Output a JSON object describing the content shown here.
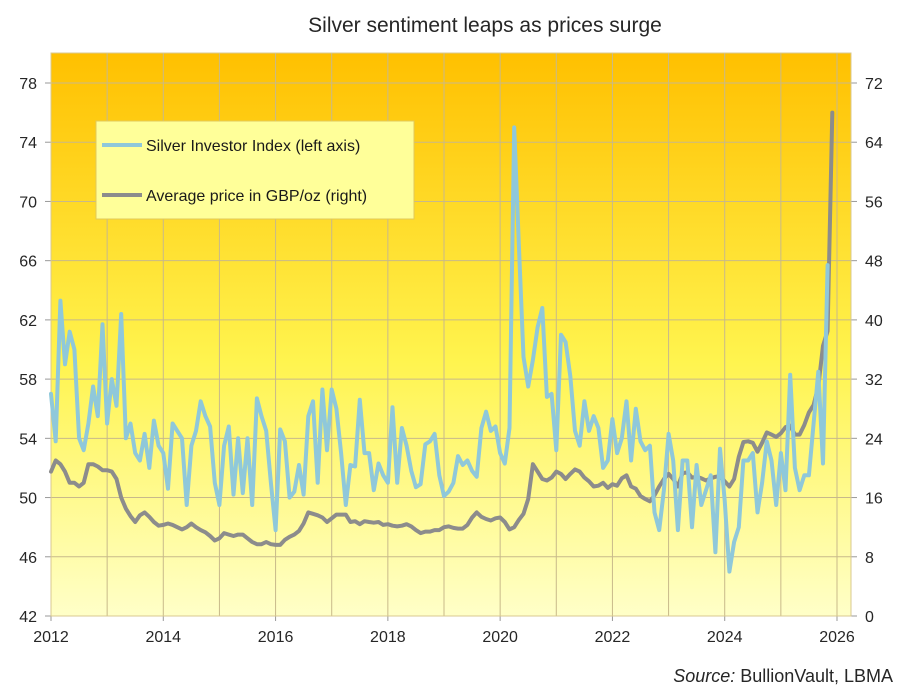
{
  "chart_data": {
    "type": "line",
    "title": "Silver sentiment leaps as prices surge",
    "source_label": "Source:",
    "source_text": "BullionVault,  LBMA",
    "xlabel": "",
    "ylabel_left": "",
    "ylabel_right": "",
    "x_start": 2012.0,
    "x_step_months": 1,
    "xlim": [
      2012,
      2026.5
    ],
    "ylim_left": [
      42,
      80
    ],
    "ylim_right": [
      0,
      76
    ],
    "x_ticks": [
      "2012",
      "2014",
      "2016",
      "2018",
      "2020",
      "2022",
      "2024",
      "2026"
    ],
    "x_tick_values": [
      2012,
      2014,
      2016,
      2018,
      2020,
      2022,
      2024,
      2026
    ],
    "x_grid_values": [
      2012,
      2013,
      2014,
      2015,
      2016,
      2017,
      2018,
      2019,
      2020,
      2021,
      2022,
      2023,
      2024,
      2025,
      2026
    ],
    "y_ticks_left": [
      "42",
      "46",
      "50",
      "54",
      "58",
      "62",
      "66",
      "70",
      "74",
      "78"
    ],
    "y_tick_values_left": [
      42,
      46,
      50,
      54,
      58,
      62,
      66,
      70,
      74,
      78
    ],
    "y_ticks_right": [
      "0",
      "8",
      "16",
      "24",
      "32",
      "40",
      "48",
      "56",
      "64",
      "72"
    ],
    "y_tick_values_right": [
      0,
      8,
      16,
      24,
      32,
      40,
      48,
      56,
      64,
      72
    ],
    "grid": true,
    "legend_position": "top-left",
    "background_gradient": {
      "top": "#FFC000",
      "middle": "#FFF44F",
      "bottom": "#FFFFC8"
    },
    "series": [
      {
        "name": "Silver Investor Index (left axis)",
        "axis": "left",
        "color": "#8FC8DA",
        "values": [
          57,
          53.8,
          63.3,
          59,
          61.2,
          60,
          54,
          53.2,
          55,
          57.5,
          55.5,
          61.7,
          55,
          58,
          56.2,
          62.4,
          54,
          55,
          53,
          52.5,
          54.3,
          52,
          55.2,
          53.5,
          53,
          50.6,
          55,
          54.5,
          54,
          49.5,
          53.5,
          54.5,
          56.5,
          55.5,
          54.8,
          51,
          49.5,
          53.5,
          54.8,
          50.2,
          54,
          50.3,
          54,
          49.5,
          56.7,
          55.5,
          54.5,
          51,
          47.8,
          54.6,
          53.8,
          50,
          50.4,
          52.2,
          50.2,
          55.5,
          56.5,
          51,
          57.3,
          53.2,
          57.3,
          56,
          53,
          49.5,
          52.2,
          52.1,
          56.6,
          53,
          53,
          50.5,
          52.3,
          51.5,
          51,
          56.1,
          51,
          54.7,
          53.5,
          51.8,
          50.7,
          50.9,
          53.6,
          53.8,
          54.3,
          51.5,
          50.1,
          50.4,
          51,
          52.8,
          52.2,
          52.5,
          51.8,
          51.4,
          54.7,
          55.8,
          54.5,
          54.8,
          53,
          52.3,
          54.7,
          75,
          67,
          59.5,
          57.5,
          59.3,
          61.5,
          62.8,
          56.8,
          57,
          53.2,
          61,
          60.5,
          58.2,
          54.5,
          53.5,
          56.5,
          54.5,
          55.5,
          54.7,
          52,
          52.5,
          55.3,
          53,
          54,
          56.5,
          52.5,
          56,
          53.8,
          53.2,
          53.5,
          49,
          47.8,
          50.5,
          54.3,
          52.5,
          47.8,
          52.5,
          52.5,
          48,
          52.2,
          49.5,
          50.5,
          51.5,
          46.3,
          53.3,
          49.8,
          45,
          47,
          48,
          52.5,
          52.5,
          53,
          49,
          51,
          53.8,
          52.5,
          49.5,
          53,
          50.5,
          58.3,
          52,
          50.5,
          51.5,
          51.5,
          55,
          58.5,
          52.3,
          65.7
        ]
      },
      {
        "name": "Average price in GBP/oz (right)",
        "axis": "right",
        "color": "#8C8C8C",
        "values": [
          19.5,
          21,
          20.5,
          19.5,
          18,
          18,
          17.5,
          18,
          20.5,
          20.5,
          20.2,
          19.7,
          19.7,
          19.5,
          18.5,
          16,
          14.5,
          13.5,
          12.7,
          13.6,
          14,
          13.4,
          12.7,
          12.2,
          12.3,
          12.5,
          12.3,
          12,
          11.7,
          12,
          12.5,
          12,
          11.6,
          11.3,
          10.8,
          10.2,
          10.5,
          11.2,
          11,
          10.8,
          11,
          11,
          10.5,
          10,
          9.7,
          9.7,
          10,
          9.7,
          9.6,
          9.6,
          10.3,
          10.7,
          11,
          11.5,
          12.5,
          14,
          13.8,
          13.6,
          13.3,
          12.7,
          13.2,
          13.7,
          13.7,
          13.7,
          12.7,
          12.8,
          12.4,
          12.8,
          12.7,
          12.6,
          12.7,
          12.3,
          12.4,
          12.2,
          12.1,
          12.2,
          12.4,
          12.1,
          11.6,
          11.2,
          11.4,
          11.4,
          11.6,
          11.6,
          12,
          12.1,
          11.9,
          11.8,
          11.8,
          12.3,
          13.3,
          14,
          13.4,
          13.1,
          12.9,
          13.2,
          13.3,
          12.7,
          11.7,
          12,
          13,
          13.8,
          15.8,
          20.5,
          19.5,
          18.5,
          18.3,
          18.7,
          19.5,
          19.2,
          18.5,
          19.2,
          19.8,
          19.5,
          18.7,
          18.2,
          17.5,
          17.6,
          18.0,
          17.3,
          17.8,
          17.6,
          18.6,
          19,
          17.5,
          17.2,
          16.2,
          15.8,
          15.5,
          16.3,
          17.5,
          18.5,
          19.2,
          18.5,
          17.5,
          19.3,
          19.4,
          18.7,
          18.8,
          18.6,
          18.3,
          18.6,
          18.8,
          18.9,
          18.2,
          17.5,
          18.5,
          21.5,
          23.5,
          23.6,
          23.4,
          22.2,
          23.4,
          24.8,
          24.5,
          24.2,
          24.7,
          25.5,
          25.7,
          24.5,
          24.5,
          25.8,
          27.5,
          28.5,
          31,
          36.5,
          38.5,
          68
        ]
      }
    ]
  }
}
